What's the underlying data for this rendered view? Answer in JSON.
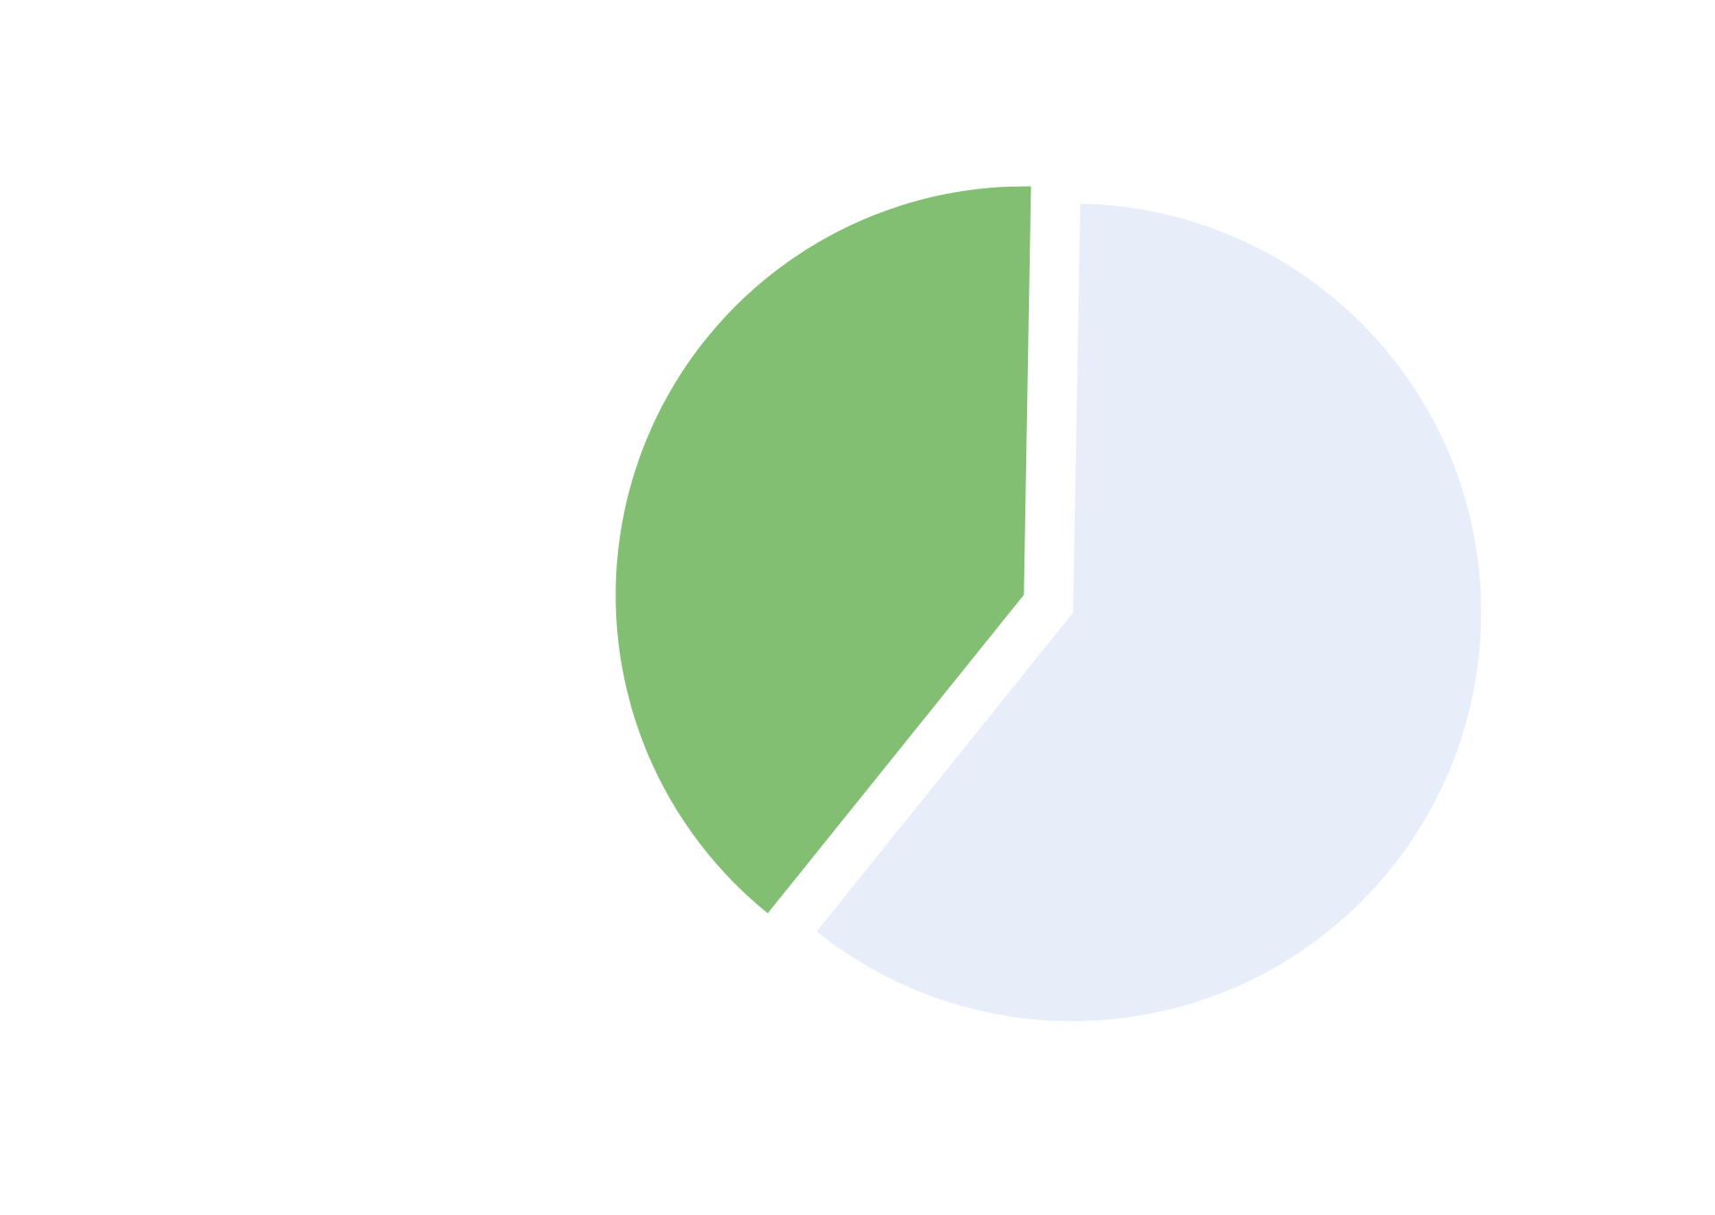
{
  "chart_data": {
    "type": "pie",
    "title": "",
    "slices": [
      {
        "label": "",
        "value": 60.5,
        "color": "#e8eef9",
        "exploded": false
      },
      {
        "label": "",
        "value": 39.5,
        "color": "#82bf73",
        "exploded": true
      }
    ],
    "legend": "none",
    "start_angle": "top",
    "direction": "clockwise"
  }
}
